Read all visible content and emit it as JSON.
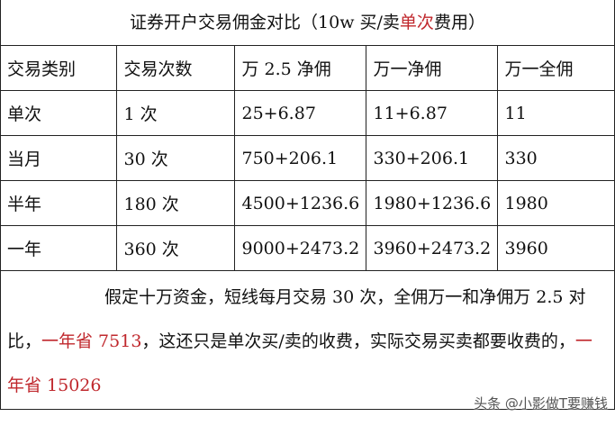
{
  "title": {
    "prefix": "证券开户交易佣金对比（10w 买/卖",
    "highlight": "单次",
    "suffix": "费用）"
  },
  "table": {
    "headers": [
      "交易类别",
      "交易次数",
      "万 2.5 净佣",
      "万一净佣",
      "万一全佣"
    ],
    "rows": [
      [
        "单次",
        "1 次",
        "25+6.87",
        "11+6.87",
        "11"
      ],
      [
        "当月",
        "30 次",
        "750+206.1",
        "330+206.1",
        "330"
      ],
      [
        "半年",
        "180 次",
        "4500+1236.6",
        "1980+1236.6",
        "1980"
      ],
      [
        "一年",
        "360 次",
        "9000+2473.2",
        "3960+2473.2",
        "3960"
      ]
    ]
  },
  "footer": {
    "p1": "假定十万资金，短线每月交易 30 次，全佣万一和净佣万 2.5 对比，",
    "r1": "一年省 7513",
    "p2": "，这还只是单次买/卖的收费，实际交易买卖都要收费的，",
    "r2": "一年省 15026"
  },
  "watermark": "头条 @小影做T要赚钱",
  "colors": {
    "highlight": "#c0282d"
  }
}
